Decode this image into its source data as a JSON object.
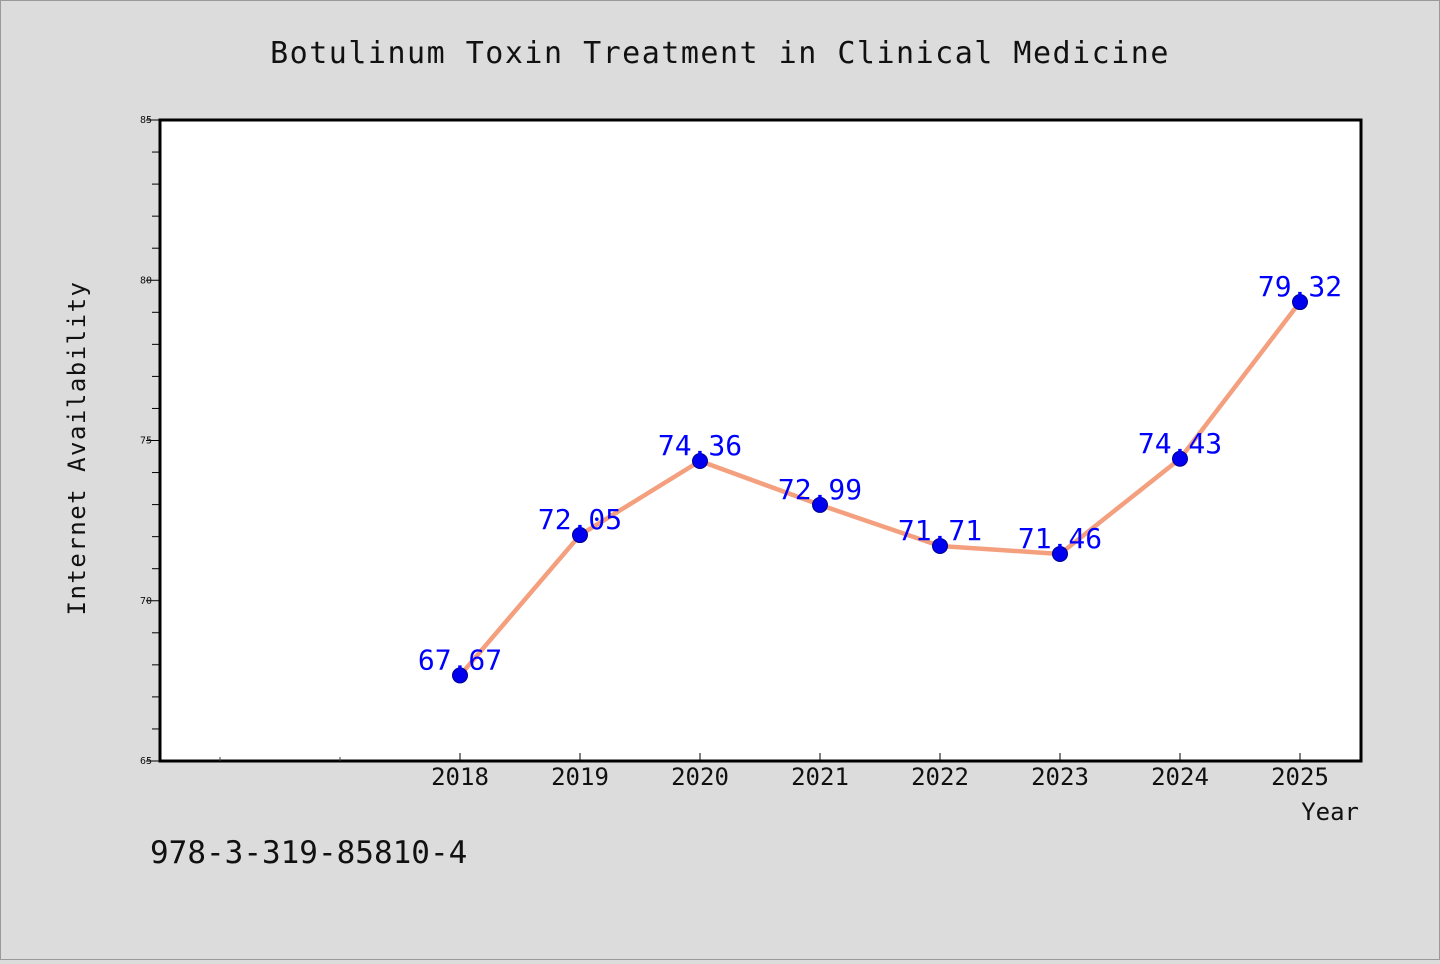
{
  "chart_data": {
    "type": "line",
    "title": "Botulinum Toxin Treatment in Clinical Medicine",
    "xlabel": "Year",
    "ylabel": "Internet Availability",
    "x": [
      "2018",
      "2019",
      "2020",
      "2021",
      "2022",
      "2023",
      "2024",
      "2025"
    ],
    "values": [
      67.67,
      72.05,
      74.36,
      72.99,
      71.71,
      71.46,
      74.43,
      79.32
    ],
    "data_labels": [
      "67.67",
      "72.05",
      "74.36",
      "72.99",
      "71.71",
      "71.46",
      "74.43",
      "79.32"
    ],
    "ylim": [
      65,
      85
    ],
    "y_ticks": [
      65,
      70,
      75,
      80,
      85
    ],
    "grid": false,
    "line_color": "#f4a07f",
    "marker_color": "#0000ee",
    "label_color": "#0000ff"
  },
  "footer_text": "978-3-319-85810-4"
}
